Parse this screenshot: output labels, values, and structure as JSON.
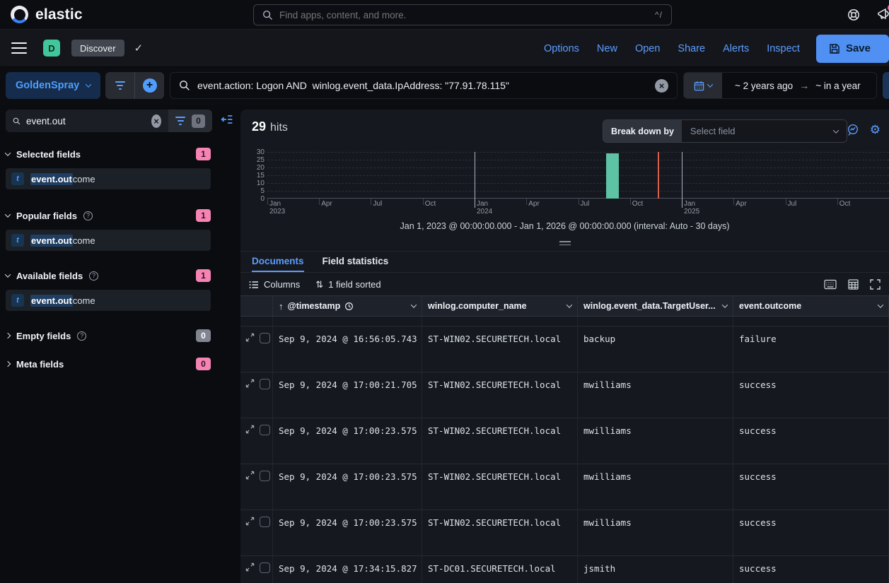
{
  "colors": {
    "link_blue": "#5c9dff",
    "accent_pink": "#f584b5",
    "space_teal": "#41c79b",
    "save_button_blue": "#4f90f2",
    "bar_teal": "#5ec2a4",
    "time_marker_red": "#d6604d"
  },
  "global_header": {
    "brand": "elastic",
    "search_placeholder": "Find apps, content, and more.",
    "shortcut_hint": "^/"
  },
  "app_bar": {
    "space_initial": "D",
    "breadcrumb": "Discover",
    "links": [
      "Options",
      "New",
      "Open",
      "Share",
      "Alerts",
      "Inspect"
    ],
    "save_label": "Save"
  },
  "query_bar": {
    "data_view": "GoldenSpray",
    "query": "event.action: Logon AND  winlog.event_data.IpAddress: \"77.91.78.115\"",
    "time_start": "~ 2 years ago",
    "time_end": "~ in a year"
  },
  "sidebar": {
    "search_value": "event.out",
    "filter_count": "0",
    "sections": [
      {
        "label": "Selected fields",
        "badge": "1",
        "badge_style": "accent",
        "expanded": true,
        "has_help": false,
        "items": [
          {
            "type": "t",
            "match": "event.out",
            "rest": "come",
            "full_name": "event.outcome"
          }
        ]
      },
      {
        "label": "Popular fields",
        "badge": "1",
        "badge_style": "accent",
        "expanded": true,
        "has_help": true,
        "items": [
          {
            "type": "t",
            "match": "event.out",
            "rest": "come",
            "full_name": "event.outcome"
          }
        ]
      },
      {
        "label": "Available fields",
        "badge": "1",
        "badge_style": "accent",
        "expanded": true,
        "has_help": true,
        "items": [
          {
            "type": "t",
            "match": "event.out",
            "rest": "come",
            "full_name": "event.outcome"
          }
        ]
      },
      {
        "label": "Empty fields",
        "badge": "0",
        "badge_style": "gray",
        "expanded": false,
        "has_help": true,
        "items": []
      },
      {
        "label": "Meta fields",
        "badge": "0",
        "badge_style": "accent",
        "expanded": false,
        "has_help": false,
        "items": []
      }
    ]
  },
  "results": {
    "hits_count": "29",
    "hits_label": "hits",
    "breakdown_label": "Break down by",
    "breakdown_placeholder": "Select field",
    "tabs": [
      {
        "label": "Documents",
        "active": true
      },
      {
        "label": "Field statistics",
        "active": false
      }
    ],
    "toolbar": {
      "columns_label": "Columns",
      "sorted_label": "1 field sorted"
    }
  },
  "chart_data": {
    "type": "bar",
    "title": "",
    "xlabel": "",
    "ylabel": "",
    "caption": "Jan 1, 2023 @ 00:00:00.000 - Jan 1, 2026 @ 00:00:00.000 (interval: Auto - 30 days)",
    "x_range_start": "Jan 1, 2023 @ 00:00:00.000",
    "x_range_end": "Jan 1, 2026 @ 00:00:00.000",
    "interval": "Auto - 30 days",
    "x_total_months": 36,
    "ylim": [
      0,
      30
    ],
    "y_ticks": [
      0,
      5,
      10,
      15,
      20,
      25,
      30
    ],
    "x_ticks": [
      {
        "label": "Jan",
        "year": "2023",
        "month": 0,
        "year_line": false
      },
      {
        "label": "Apr",
        "year": "",
        "month": 3,
        "year_line": false
      },
      {
        "label": "Jul",
        "year": "",
        "month": 6,
        "year_line": false
      },
      {
        "label": "Oct",
        "year": "",
        "month": 9,
        "year_line": false
      },
      {
        "label": "Jan",
        "year": "2024",
        "month": 12,
        "year_line": true
      },
      {
        "label": "Apr",
        "year": "",
        "month": 15,
        "year_line": false
      },
      {
        "label": "Jul",
        "year": "",
        "month": 18,
        "year_line": false
      },
      {
        "label": "Oct",
        "year": "",
        "month": 21,
        "year_line": false
      },
      {
        "label": "Jan",
        "year": "2025",
        "month": 24,
        "year_line": true
      },
      {
        "label": "Apr",
        "year": "",
        "month": 27,
        "year_line": false
      },
      {
        "label": "Jul",
        "year": "",
        "month": 30,
        "year_line": false
      },
      {
        "label": "Oct",
        "year": "",
        "month": 33,
        "year_line": false
      }
    ],
    "bars": [
      {
        "x": "Aug-Sep 2024 bucket",
        "month_offset": 19.6,
        "value": 29
      }
    ],
    "current_time_marker": {
      "month_offset": 22.6,
      "label": "current time"
    },
    "bar_color": "#5ec2a4",
    "marker_color": "#d6604d",
    "grid": "dashed horizontal",
    "legend": false
  },
  "table": {
    "columns": [
      {
        "id": "timestamp",
        "label": "@timestamp",
        "sorted": "asc"
      },
      {
        "id": "computer",
        "label": "winlog.computer_name"
      },
      {
        "id": "user",
        "label": "winlog.event_data.TargetUser..."
      },
      {
        "id": "outcome",
        "label": "event.outcome"
      }
    ],
    "rows": [
      {
        "timestamp": "Sep 9, 2024 @ 16:56:05.743",
        "computer": "ST-WIN02.SECURETECH.local",
        "user": "backup",
        "outcome": "failure"
      },
      {
        "timestamp": "Sep 9, 2024 @ 17:00:21.705",
        "computer": "ST-WIN02.SECURETECH.local",
        "user": "mwilliams",
        "outcome": "success"
      },
      {
        "timestamp": "Sep 9, 2024 @ 17:00:23.575",
        "computer": "ST-WIN02.SECURETECH.local",
        "user": "mwilliams",
        "outcome": "success"
      },
      {
        "timestamp": "Sep 9, 2024 @ 17:00:23.575",
        "computer": "ST-WIN02.SECURETECH.local",
        "user": "mwilliams",
        "outcome": "success"
      },
      {
        "timestamp": "Sep 9, 2024 @ 17:00:23.575",
        "computer": "ST-WIN02.SECURETECH.local",
        "user": "mwilliams",
        "outcome": "success"
      },
      {
        "timestamp": "Sep 9, 2024 @ 17:34:15.827",
        "computer": "ST-DC01.SECURETECH.local",
        "user": "jsmith",
        "outcome": "success"
      }
    ]
  }
}
